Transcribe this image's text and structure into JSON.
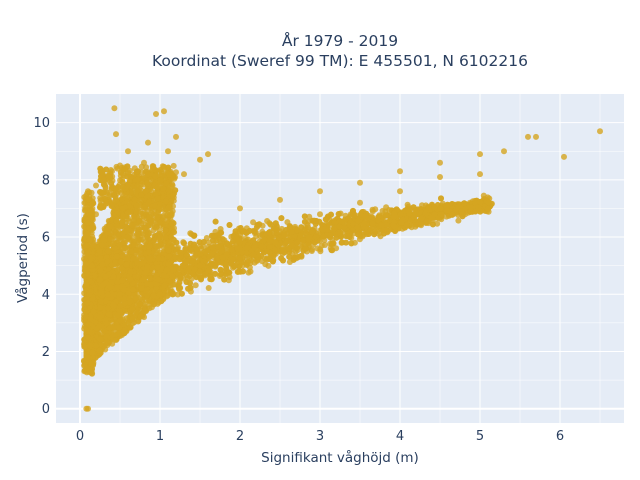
{
  "chart_data": {
    "type": "scatter",
    "title_line1": "År 1979 - 2019",
    "title_line2": "Koordinat (Sweref 99 TM): E 455501, N 6102216",
    "xlabel": "Signifikant våghöjd (m)",
    "ylabel": "Vågperiod (s)",
    "xlim": [
      -0.3,
      6.8
    ],
    "ylim": [
      -0.5,
      11.0
    ],
    "x_ticks": [
      0,
      1,
      2,
      3,
      4,
      5,
      6
    ],
    "x_tick_labels": [
      "0",
      "1",
      "2",
      "3",
      "4",
      "5",
      "6"
    ],
    "y_ticks": [
      0,
      2,
      4,
      6,
      8,
      10
    ],
    "y_tick_labels": [
      "0",
      "2",
      "4",
      "6",
      "8",
      "10"
    ],
    "grid": true,
    "legend": "none",
    "colors": {
      "marker": "#d4a520",
      "plot_background": "#e5ecf6",
      "grid": "#ffffff",
      "text": "#2a3f5f"
    },
    "series": [
      {
        "points_sample": [
          [
            0.08,
            0.0
          ],
          [
            0.1,
            0.0
          ],
          [
            0.1,
            1.4
          ],
          [
            0.1,
            1.8
          ],
          [
            0.1,
            2.5
          ],
          [
            0.1,
            3.7
          ],
          [
            0.1,
            6.5
          ],
          [
            0.1,
            7.6
          ],
          [
            0.15,
            5.0
          ],
          [
            0.2,
            2.2
          ],
          [
            0.2,
            6.8
          ],
          [
            0.2,
            7.8
          ],
          [
            0.3,
            8.0
          ],
          [
            0.35,
            5.5
          ],
          [
            0.4,
            3.0
          ],
          [
            0.4,
            8.3
          ],
          [
            0.43,
            10.5
          ],
          [
            0.45,
            9.6
          ],
          [
            0.5,
            4.0
          ],
          [
            0.5,
            8.5
          ],
          [
            0.6,
            6.0
          ],
          [
            0.6,
            9.0
          ],
          [
            0.8,
            3.2
          ],
          [
            0.8,
            8.6
          ],
          [
            0.85,
            9.3
          ],
          [
            0.95,
            10.3
          ],
          [
            1.0,
            4.0
          ],
          [
            1.0,
            6.5
          ],
          [
            1.0,
            7.8
          ],
          [
            1.05,
            10.4
          ],
          [
            1.1,
            9.0
          ],
          [
            1.2,
            9.5
          ],
          [
            1.3,
            8.2
          ],
          [
            1.5,
            5.0
          ],
          [
            1.5,
            8.7
          ],
          [
            1.6,
            8.9
          ],
          [
            2.0,
            5.6
          ],
          [
            2.0,
            7.0
          ],
          [
            2.5,
            6.2
          ],
          [
            2.5,
            7.3
          ],
          [
            3.0,
            6.8
          ],
          [
            3.0,
            7.6
          ],
          [
            3.5,
            7.2
          ],
          [
            3.5,
            7.9
          ],
          [
            4.0,
            7.6
          ],
          [
            4.0,
            8.3
          ],
          [
            4.5,
            8.1
          ],
          [
            4.5,
            8.6
          ],
          [
            5.0,
            8.2
          ],
          [
            5.0,
            8.9
          ],
          [
            5.3,
            9.0
          ],
          [
            5.6,
            9.5
          ],
          [
            5.7,
            9.5
          ],
          [
            6.05,
            8.8
          ],
          [
            6.5,
            9.7
          ]
        ]
      }
    ]
  }
}
